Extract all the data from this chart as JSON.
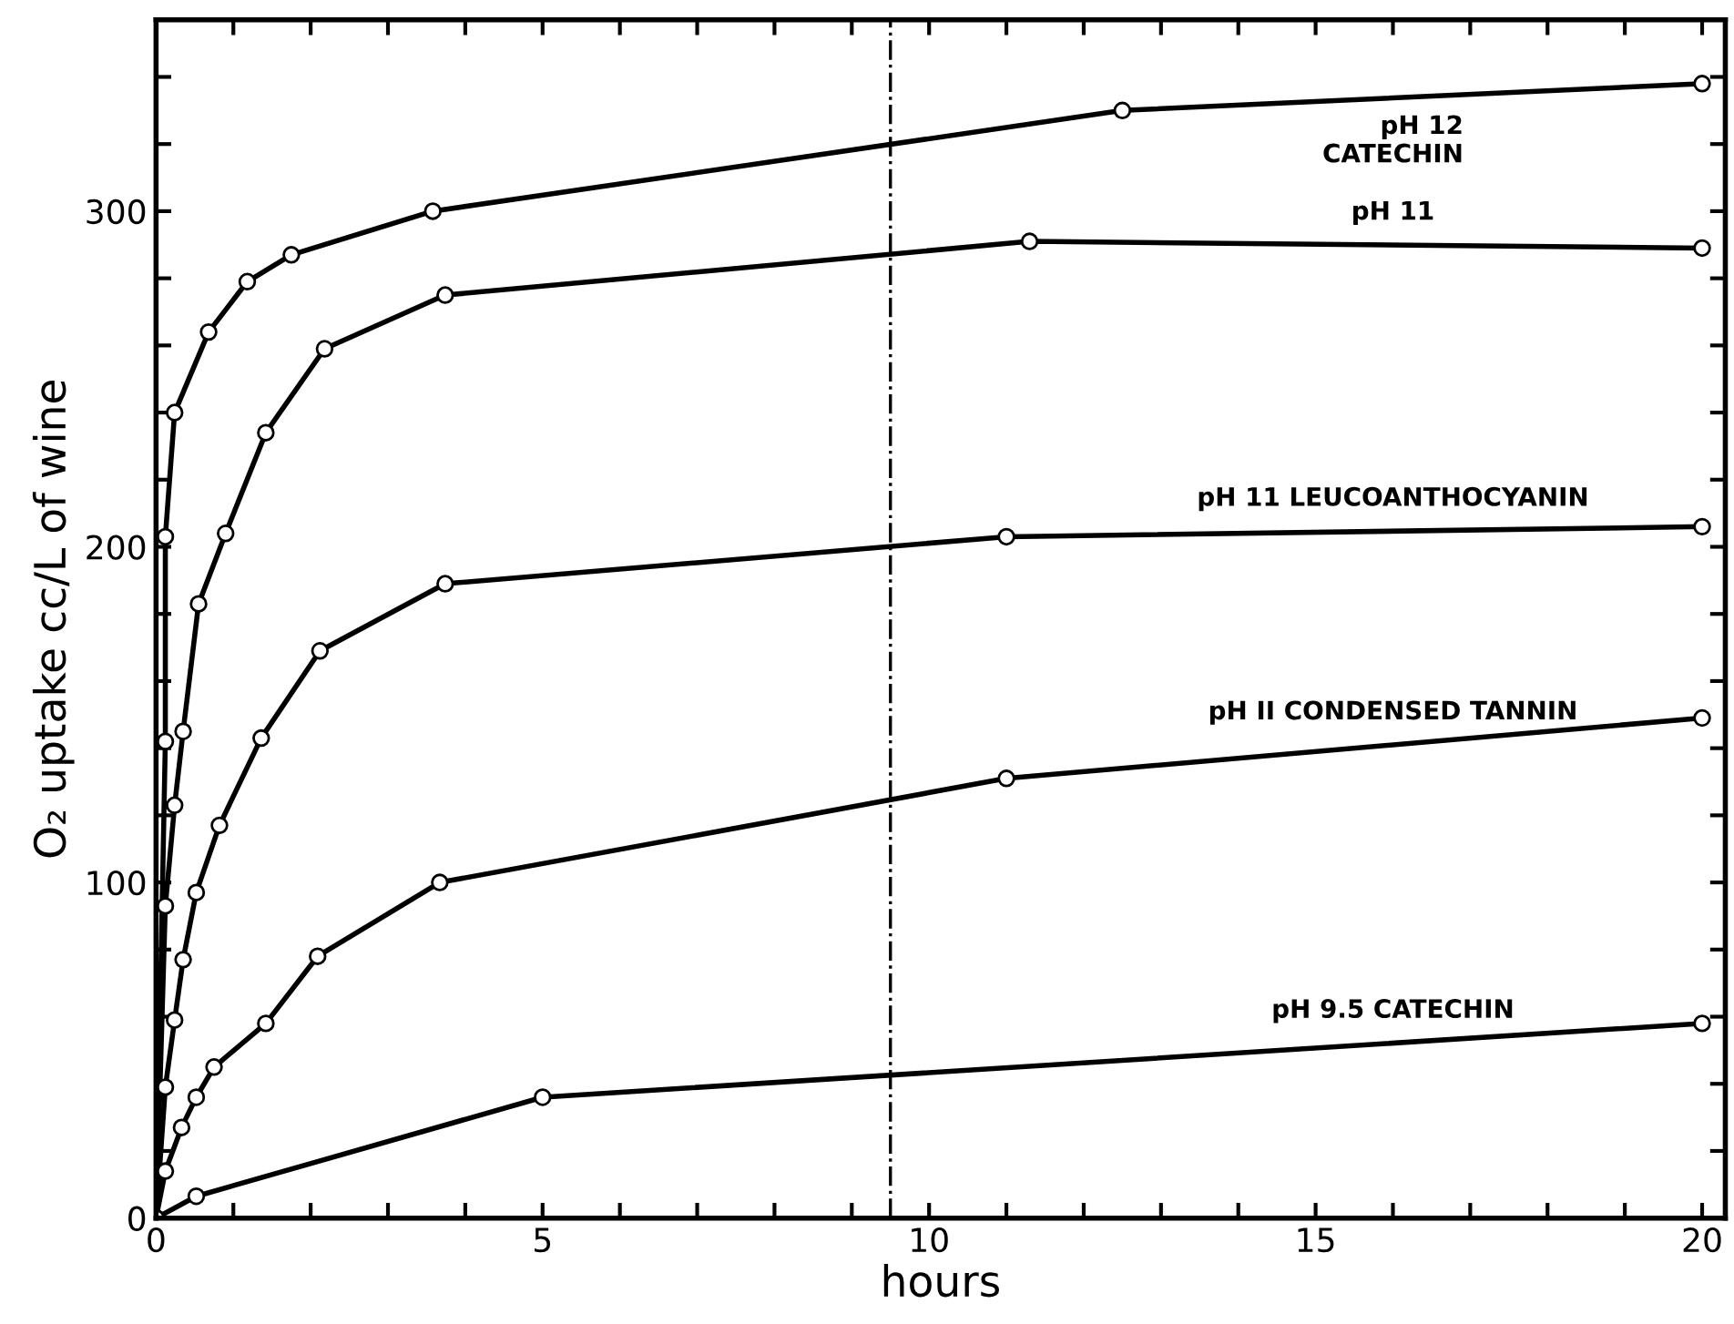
{
  "chart_data": {
    "type": "line",
    "xlabel": "hours",
    "ylabel": "O₂ uptake cc/L of wine",
    "xlim": [
      0,
      20.3
    ],
    "ylim": [
      0,
      357
    ],
    "xticks": [
      0,
      {
        "value": 1,
        "label": null
      },
      {
        "value": 2,
        "label": null
      },
      {
        "value": 3,
        "label": null
      },
      {
        "value": 4,
        "label": null
      },
      5,
      {
        "value": 6,
        "label": null
      },
      {
        "value": 7,
        "label": null
      },
      {
        "value": 8,
        "label": null
      },
      {
        "value": 9,
        "label": null
      },
      10,
      {
        "value": 11,
        "label": null
      },
      {
        "value": 12,
        "label": null
      },
      {
        "value": 13,
        "label": null
      },
      {
        "value": 14,
        "label": null
      },
      15,
      {
        "value": 16,
        "label": null
      },
      {
        "value": 17,
        "label": null
      },
      {
        "value": 18,
        "label": null
      },
      {
        "value": 19,
        "label": null
      },
      20
    ],
    "yticks": [
      0,
      {
        "value": 20,
        "label": null
      },
      {
        "value": 40,
        "label": null
      },
      {
        "value": 60,
        "label": null
      },
      {
        "value": 80,
        "label": null
      },
      100,
      {
        "value": 120,
        "label": null
      },
      {
        "value": 140,
        "label": null
      },
      {
        "value": 160,
        "label": null
      },
      {
        "value": 180,
        "label": null
      },
      200,
      {
        "value": 220,
        "label": null
      },
      {
        "value": 240,
        "label": null
      },
      {
        "value": 260,
        "label": null
      },
      {
        "value": 280,
        "label": null
      },
      300,
      {
        "value": 320,
        "label": null
      },
      {
        "value": 340,
        "label": null
      }
    ],
    "marker": "circle",
    "line_style": "solid",
    "grid": false,
    "legend": false,
    "ref_lines": [
      {
        "axis": "x",
        "value": 9.5,
        "color": "#000000",
        "line_style": "dashdot"
      }
    ],
    "series": [
      {
        "name": "pH 12\nCATECHIN",
        "color": "#000000",
        "x": [
          0,
          0.12,
          0.12,
          0.24,
          0.68,
          1.18,
          1.75,
          3.58,
          12.5,
          20
        ],
        "values": [
          0,
          142,
          203,
          240,
          264,
          279,
          287,
          300,
          330,
          338
        ]
      },
      {
        "name": "pH 11",
        "color": "#000000",
        "x": [
          0,
          0.12,
          0.24,
          0.35,
          0.55,
          0.9,
          1.42,
          2.18,
          3.74,
          11.3,
          20
        ],
        "values": [
          0,
          93,
          123,
          145,
          183,
          204,
          234,
          259,
          275,
          291,
          289
        ]
      },
      {
        "name": "pH 11 LEUCOANTHOCYANIN",
        "color": "#000000",
        "x": [
          0,
          0.12,
          0.24,
          0.35,
          0.52,
          0.82,
          1.36,
          2.12,
          3.74,
          11.0,
          20
        ],
        "values": [
          0,
          39,
          59,
          77,
          97,
          117,
          143,
          169,
          189,
          203,
          206
        ]
      },
      {
        "name": "pH II CONDENSED TANNIN",
        "color": "#000000",
        "x": [
          0,
          0.12,
          0.33,
          0.52,
          0.75,
          1.42,
          2.09,
          3.67,
          11.0,
          20
        ],
        "values": [
          0,
          14,
          27,
          36,
          45,
          58,
          78,
          100,
          131,
          149
        ]
      },
      {
        "name": "pH 9.5 CATECHIN",
        "color": "#000000",
        "x": [
          0,
          0.52,
          5,
          20
        ],
        "values": [
          0,
          6.5,
          36,
          58
        ]
      }
    ]
  }
}
